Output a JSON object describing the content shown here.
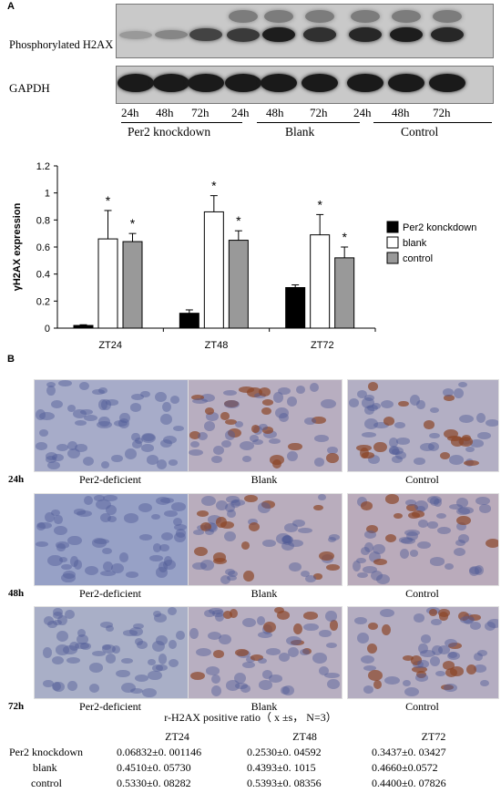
{
  "panelA": {
    "letter": "A",
    "blot_label_top": "Phosphorylated H2AX",
    "blot_label_bottom": "GAPDH",
    "lanes": [
      "24h",
      "48h",
      "72h",
      "24h",
      "48h",
      "72h",
      "24h",
      "48h",
      "72h"
    ],
    "groups": [
      "Per2 knockdown",
      "Blank",
      "Control"
    ],
    "h2ax_band_intensity": [
      0.25,
      0.35,
      0.7,
      0.75,
      0.9,
      0.8,
      0.85,
      0.9,
      0.85
    ],
    "gapdh_band_intensity": [
      0.9,
      0.9,
      0.9,
      0.9,
      0.9,
      0.9,
      0.9,
      0.9,
      0.9
    ]
  },
  "chart_data": {
    "type": "bar",
    "categories": [
      "ZT24",
      "ZT48",
      "ZT72"
    ],
    "ylabel": "γH2AX expression",
    "ylim": [
      0,
      1.2
    ],
    "yticks": [
      "0",
      "0.2",
      "0.4",
      "0.6",
      "0.8",
      "1",
      "1.2"
    ],
    "legend_position": "right",
    "significance_marker": "*",
    "series": [
      {
        "name": "Per2 konckdown",
        "color": "#000000",
        "values": [
          0.02,
          0.11,
          0.3
        ],
        "errors": [
          0.005,
          0.025,
          0.02
        ],
        "sig": [
          false,
          false,
          false
        ]
      },
      {
        "name": "blank",
        "color": "#ffffff",
        "values": [
          0.66,
          0.86,
          0.69
        ],
        "errors": [
          0.21,
          0.12,
          0.15
        ],
        "sig": [
          true,
          true,
          true
        ]
      },
      {
        "name": "control",
        "color": "#999999",
        "values": [
          0.64,
          0.65,
          0.52
        ],
        "errors": [
          0.06,
          0.07,
          0.08
        ],
        "sig": [
          true,
          true,
          true
        ]
      }
    ]
  },
  "panelB": {
    "letter": "B",
    "rows": [
      {
        "time": "24h",
        "captions": [
          "Per2-deficient",
          "Blank",
          "Control"
        ]
      },
      {
        "time": "48h",
        "captions": [
          "Per2-deficient",
          "Blank",
          "Control"
        ]
      },
      {
        "time": "72h",
        "captions": [
          "Per2-deficient",
          "Blank",
          "Control"
        ]
      }
    ]
  },
  "table": {
    "title": "r-H2AX positive ratio（ x ±s， N=3）",
    "headers": [
      "ZT24",
      "ZT48",
      "ZT72"
    ],
    "rows": [
      {
        "label": "Per2 knockdown",
        "values": [
          "0.06832±0. 001146",
          "0.2530±0. 04592",
          "0.3437±0. 03427"
        ]
      },
      {
        "label": "blank",
        "values": [
          "0.4510±0. 05730",
          "0.4393±0. 1015",
          "0.4660±0.0572"
        ]
      },
      {
        "label": "control",
        "values": [
          "0.5330±0. 08282",
          "0.5393±0. 08356",
          "0.4400±0. 07826"
        ]
      }
    ]
  }
}
